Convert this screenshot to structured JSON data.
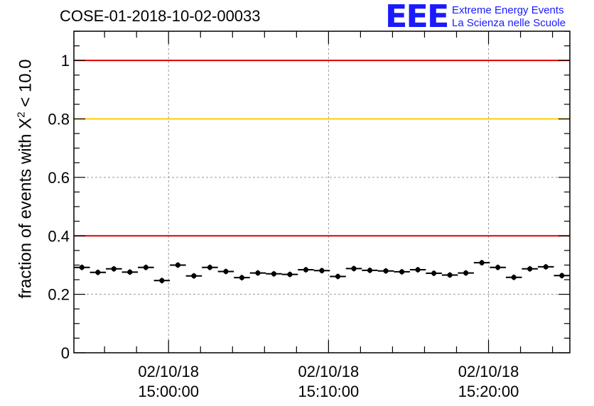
{
  "title": "COSE-01-2018-10-02-00033",
  "logo": {
    "mark": "EEE",
    "line1": "Extreme Energy Events",
    "line2": "La Scienza nelle Scuole"
  },
  "colors": {
    "red_line": "#e00000",
    "yellow_line": "#ffcc00",
    "points": "#000000",
    "logo": "#1a1aff",
    "grid": "#9a9a9a"
  },
  "chart_data": {
    "type": "scatter",
    "title": "COSE-01-2018-10-02-00033",
    "ylabel": "fraction of events with X² < 10.0",
    "ylabel_parts": {
      "before": "fraction of events with X",
      "sup": "2",
      "after": " < 10.0"
    },
    "ylim": [
      0,
      1.1
    ],
    "yticks": [
      0,
      0.2,
      0.4,
      0.6,
      0.8,
      1
    ],
    "ytick_labels": [
      "0",
      "0.2",
      "0.4",
      "0.6",
      "0.8",
      "1"
    ],
    "xlim": [
      "2018-10-02 14:54:05",
      "2018-10-02 15:25:05"
    ],
    "xticks": [
      "2018-10-02 15:00:00",
      "2018-10-02 15:10:00",
      "2018-10-02 15:20:00"
    ],
    "xtick_labels": [
      {
        "date": "02/10/18",
        "time": "15:00:00"
      },
      {
        "date": "02/10/18",
        "time": "15:10:00"
      },
      {
        "date": "02/10/18",
        "time": "15:20:00"
      }
    ],
    "grid": true,
    "reference_lines": [
      {
        "y": 1.0,
        "color": "#e00000"
      },
      {
        "y": 0.8,
        "color": "#ffcc00"
      },
      {
        "y": 0.4,
        "color": "#e00000"
      }
    ],
    "series": [
      {
        "x": [
          "14:54:35",
          "14:55:35",
          "14:56:35",
          "14:57:35",
          "14:58:35",
          "14:59:35",
          "15:00:35",
          "15:01:35",
          "15:02:35",
          "15:03:35",
          "15:04:35",
          "15:05:35",
          "15:06:35",
          "15:07:35",
          "15:08:35",
          "15:09:35",
          "15:10:35",
          "15:11:35",
          "15:12:35",
          "15:13:35",
          "15:14:35",
          "15:15:35",
          "15:16:35",
          "15:17:35",
          "15:18:35",
          "15:19:35",
          "15:20:35",
          "15:21:35",
          "15:22:35",
          "15:23:35",
          "15:24:35"
        ],
        "y": [
          0.292,
          0.275,
          0.287,
          0.276,
          0.292,
          0.247,
          0.3,
          0.263,
          0.292,
          0.278,
          0.257,
          0.273,
          0.27,
          0.268,
          0.284,
          0.281,
          0.261,
          0.288,
          0.282,
          0.28,
          0.277,
          0.284,
          0.272,
          0.266,
          0.273,
          0.308,
          0.292,
          0.258,
          0.287,
          0.294,
          0.264
        ],
        "x_error_seconds": 30
      }
    ]
  }
}
